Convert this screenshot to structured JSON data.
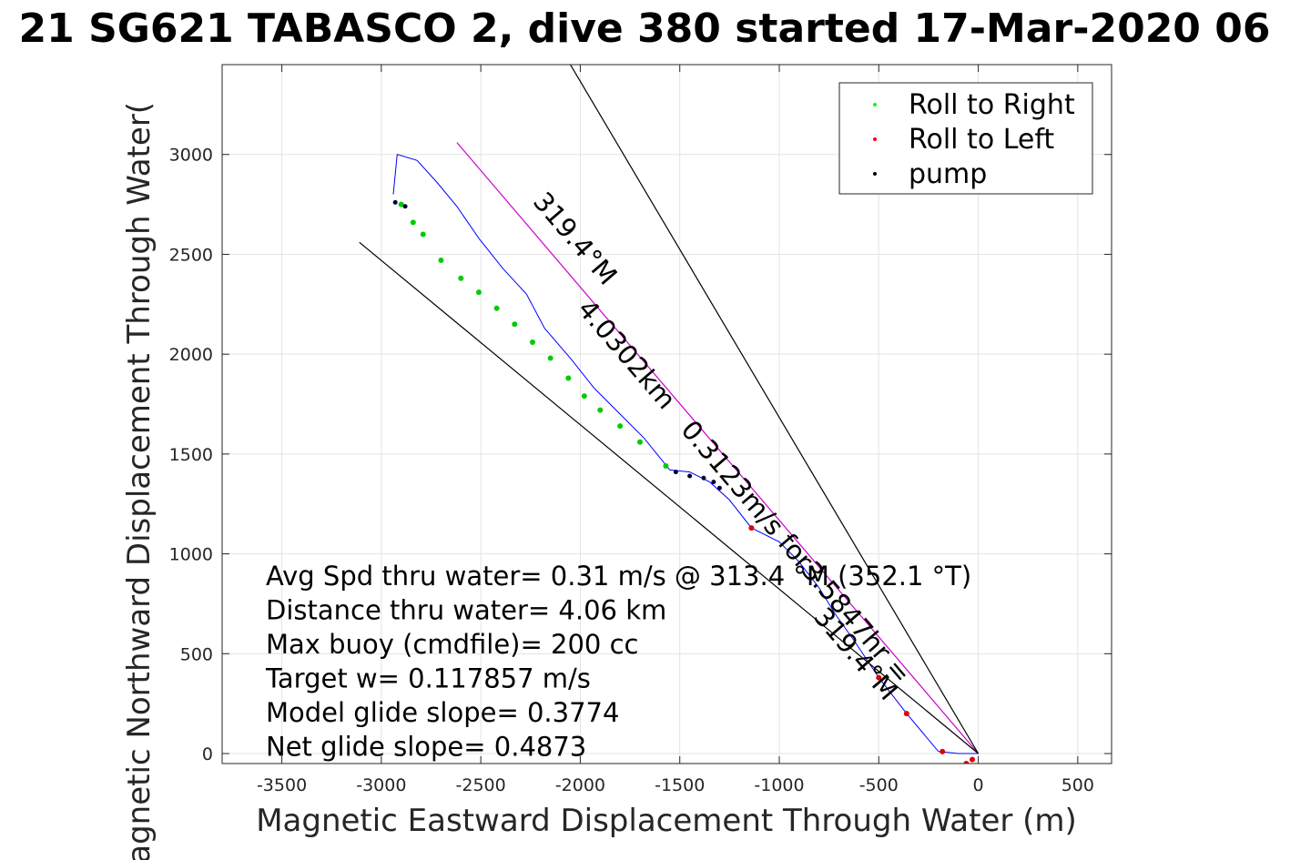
{
  "chart_data": {
    "type": "line",
    "title": "21 SG621 TABASCO 2, dive 380 started 17-Mar-2020 06",
    "xlabel": "Magnetic Eastward Displacement Through Water (m)",
    "ylabel": "Magnetic Northward Displacement Through Water(",
    "xlim": [
      -3800,
      670
    ],
    "ylim": [
      -50,
      3450
    ],
    "xticks": [
      -3500,
      -3000,
      -2500,
      -2000,
      -1500,
      -1000,
      -500,
      0,
      500
    ],
    "yticks": [
      0,
      500,
      1000,
      1500,
      2000,
      2500,
      3000
    ],
    "grid": true,
    "legend": {
      "position": "top-right",
      "entries": [
        {
          "label": "Roll to Right",
          "color": "#00ff00"
        },
        {
          "label": "Roll to Left",
          "color": "#ff0000"
        },
        {
          "label": "pump",
          "color": "#000000"
        }
      ]
    },
    "series": [
      {
        "color": "#0000ff",
        "x": [
          0,
          -100,
          -200,
          -360,
          -500,
          -620,
          -720,
          -800,
          -900,
          -1000,
          -1140,
          -1250,
          -1350,
          -1450,
          -1550,
          -1680,
          -1800,
          -1930,
          -2050,
          -2180,
          -2270,
          -2390,
          -2510,
          -2620,
          -2720,
          -2820,
          -2920,
          -2940
        ],
        "y": [
          0,
          0,
          10,
          200,
          380,
          560,
          700,
          830,
          960,
          1060,
          1130,
          1270,
          1360,
          1410,
          1420,
          1580,
          1700,
          1830,
          1980,
          2130,
          2300,
          2430,
          2580,
          2740,
          2860,
          2970,
          3000,
          2800
        ]
      },
      {
        "color": "#cc00cc",
        "x": [
          0,
          -2620
        ],
        "y": [
          0,
          3060
        ]
      },
      {
        "color": "#000000",
        "x": [
          0,
          -3110
        ],
        "y": [
          0,
          2560
        ]
      },
      {
        "color": "#000000",
        "x": [
          0,
          -2050
        ],
        "y": [
          0,
          3450
        ]
      }
    ],
    "roll_right_points": {
      "x": [
        -2900,
        -2840,
        -2790,
        -2700,
        -2600,
        -2510,
        -2420,
        -2330,
        -2240,
        -2150,
        -2060,
        -1980,
        -1900,
        -1800,
        -1700,
        -1570
      ],
      "y": [
        2750,
        2660,
        2600,
        2470,
        2380,
        2310,
        2230,
        2150,
        2060,
        1980,
        1880,
        1790,
        1720,
        1640,
        1560,
        1440
      ]
    },
    "roll_left_points": {
      "x": [
        -1140,
        -500,
        -360,
        -180,
        -60,
        -30
      ],
      "y": [
        1130,
        380,
        200,
        10,
        -50,
        -30
      ]
    },
    "pump_points": {
      "x": [
        -2930,
        -2880,
        -1520,
        -1450,
        -1380,
        -1330,
        -1300
      ],
      "y": [
        2760,
        2740,
        1410,
        1390,
        1380,
        1360,
        1330
      ]
    },
    "annotations": [
      {
        "text": "319.4°M",
        "x": -2060,
        "y": 2550,
        "angle": 49.4
      },
      {
        "text": "4.0302km",
        "x": -1800,
        "y": 1970,
        "angle": 49.4
      },
      {
        "text": "0.3123m/s for3.5847hr =",
        "x": -950,
        "y": 980,
        "angle": 49.4
      },
      {
        "text": "319.4°M",
        "x": -650,
        "y": 470,
        "angle": 49.4
      }
    ],
    "stats": [
      "Avg Spd thru water=  0.31 m/s @ 313.4 °M (352.1 °T)",
      "Distance thru water=  4.06 km",
      "Max buoy (cmdfile)= 200 cc",
      "Target w= 0.117857 m/s",
      "Model glide slope= 0.3774",
      "Net glide slope= 0.4873"
    ]
  }
}
